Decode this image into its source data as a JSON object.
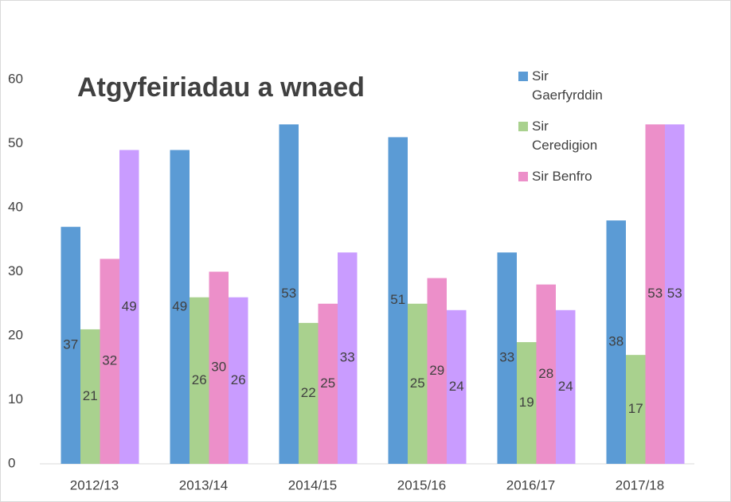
{
  "chart_data": {
    "type": "bar",
    "title": "Atgyfeiriadau a wnaed",
    "categories": [
      "2012/13",
      "2013/14",
      "2014/15",
      "2015/16",
      "2016/17",
      "2017/18"
    ],
    "series": [
      {
        "name": "Sir Gaerfyrddin",
        "color": "#5b9bd5",
        "values": [
          37,
          49,
          53,
          51,
          33,
          38
        ]
      },
      {
        "name": "Sir Ceredigion",
        "color": "#a9d18e",
        "values": [
          21,
          26,
          22,
          25,
          19,
          17
        ]
      },
      {
        "name": "Sir Benfro",
        "color": "#ec8fc9",
        "values": [
          32,
          30,
          25,
          29,
          28,
          53
        ]
      },
      {
        "color": "#c99cff",
        "values": [
          49,
          26,
          33,
          24,
          24,
          53
        ]
      }
    ],
    "ylim": [
      0,
      60
    ],
    "yticks": [
      0,
      10,
      20,
      30,
      40,
      50,
      60
    ],
    "grid": false,
    "legend": "top-right"
  }
}
